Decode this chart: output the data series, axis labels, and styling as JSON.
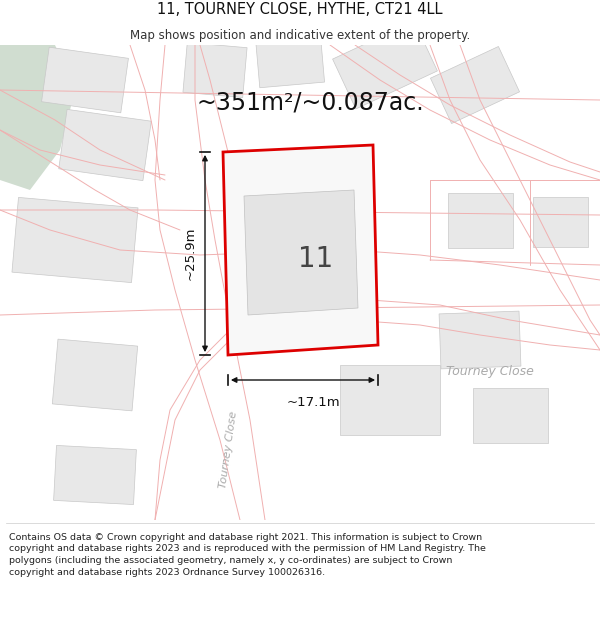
{
  "title": "11, TOURNEY CLOSE, HYTHE, CT21 4LL",
  "subtitle": "Map shows position and indicative extent of the property.",
  "area_text": "~351m²/~0.087ac.",
  "width_label": "~17.1m",
  "height_label": "~25.9m",
  "number_label": "11",
  "road_label_diag": "Tourney Close",
  "road_label_horiz": "Tourney Close",
  "footer": "Contains OS data © Crown copyright and database right 2021. This information is subject to Crown copyright and database rights 2023 and is reproduced with the permission of HM Land Registry. The polygons (including the associated geometry, namely x, y co-ordinates) are subject to Crown copyright and database rights 2023 Ordnance Survey 100026316.",
  "bg_color": "#ffffff",
  "road_line_color": "#f0b0b0",
  "road_line_color2": "#e8a0a0",
  "building_color": "#e8e8e8",
  "building_edge_color": "#c8c8c8",
  "green_color": "#d0ddd0",
  "prop_fill": "#f8f8f8",
  "prop_border": "#dd0000",
  "inner_fill": "#e4e4e4",
  "inner_edge": "#c0c0c0",
  "dim_color": "#111111",
  "text_color": "#333333",
  "road_text_color": "#aaaaaa"
}
